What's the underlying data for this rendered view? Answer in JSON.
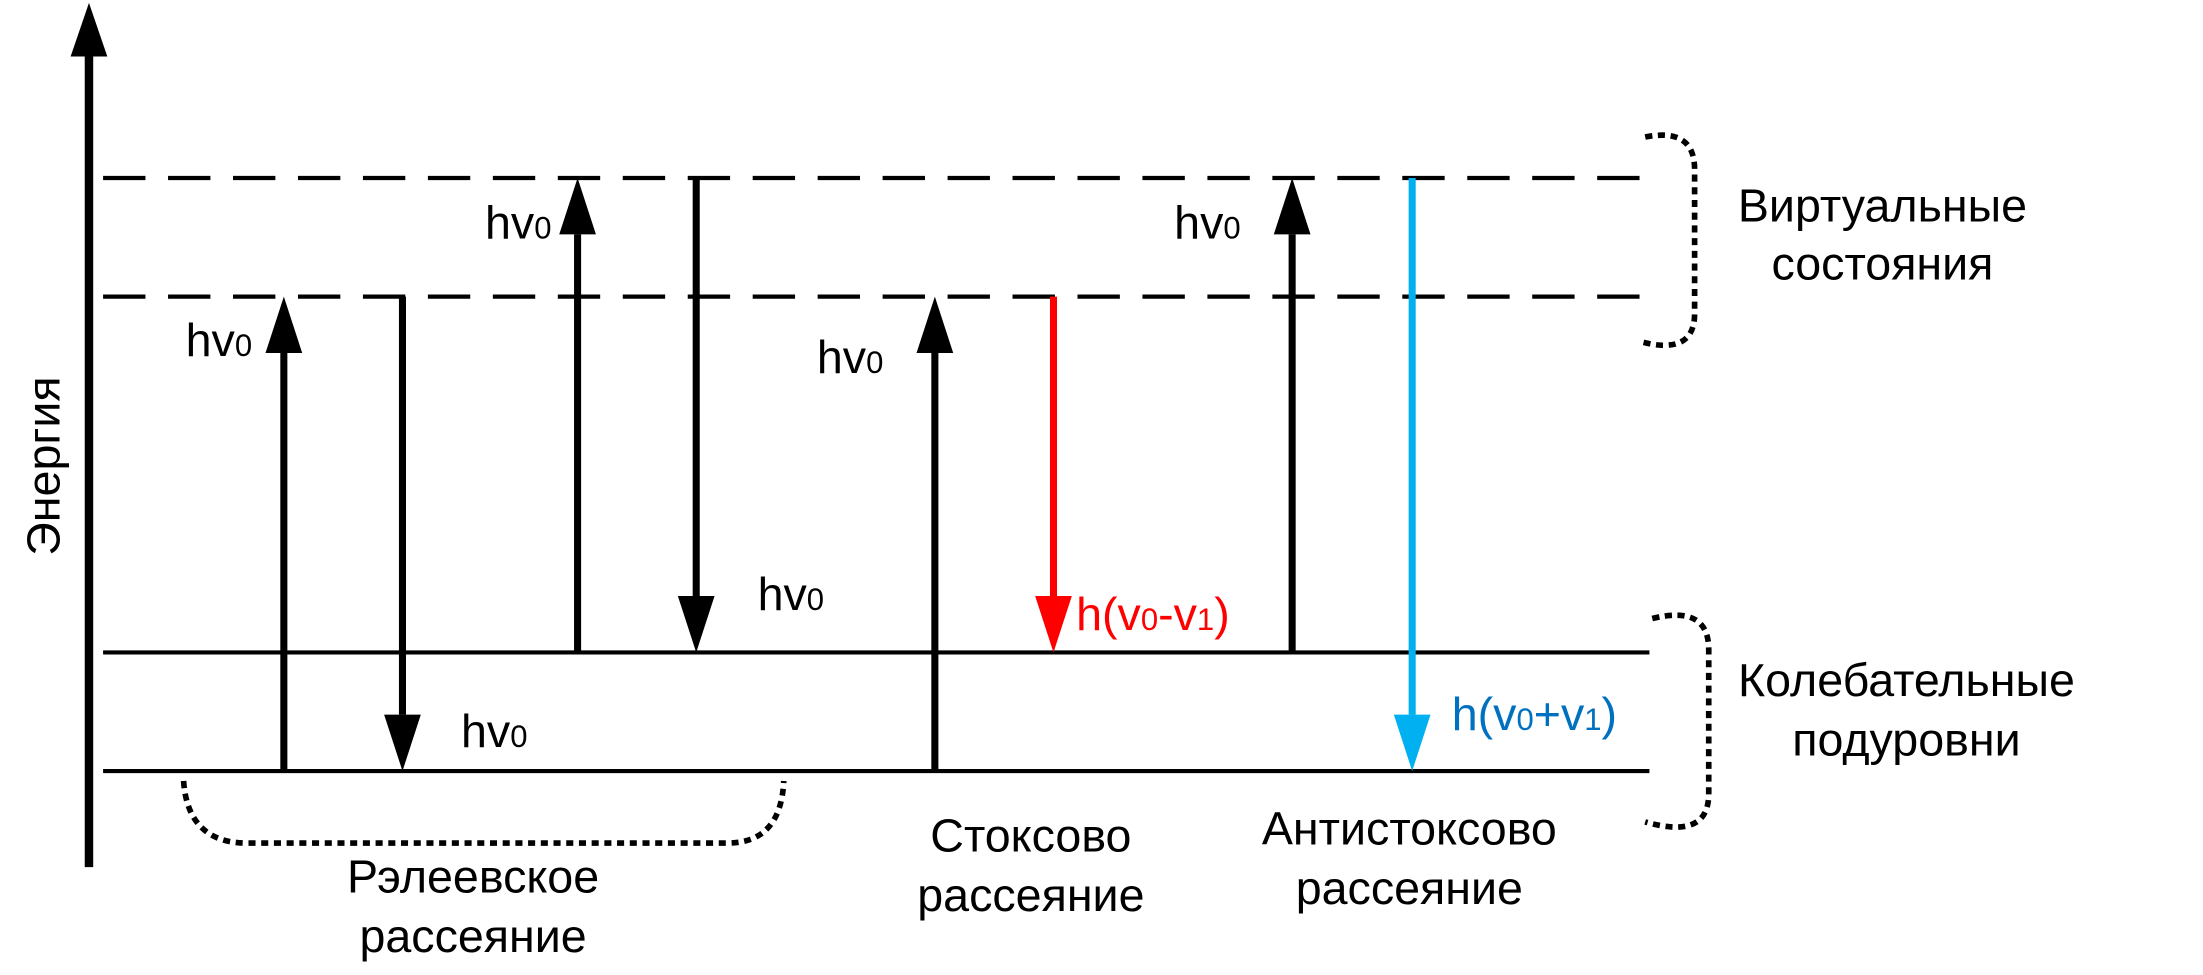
{
  "axis_label": "Энергия",
  "arrows": [
    {
      "label": [
        "hv",
        "0"
      ]
    },
    {
      "label": [
        "hv",
        "0"
      ]
    },
    {
      "label": [
        "hv",
        "0"
      ]
    },
    {
      "label": [
        "hv",
        "0"
      ]
    },
    {
      "label": [
        "hv",
        "0"
      ]
    },
    {
      "label": [
        "h(v",
        "0",
        "-v",
        "1",
        ")"
      ]
    },
    {
      "label": [
        "hv",
        "0"
      ]
    },
    {
      "label": [
        "h(v",
        "0",
        "+v",
        "1",
        ")"
      ]
    }
  ],
  "levels": {
    "virtual": [
      "Виртуальные",
      "состояния"
    ],
    "vibrational": [
      "Колебательные",
      "подуровни"
    ]
  },
  "scattering": {
    "rayleigh": [
      "Рэлеевское",
      "рассеяние"
    ],
    "stokes": [
      "Стоксово",
      "рассеяние"
    ],
    "anti_stokes": [
      "Антистоксово",
      "рассеяние"
    ]
  }
}
